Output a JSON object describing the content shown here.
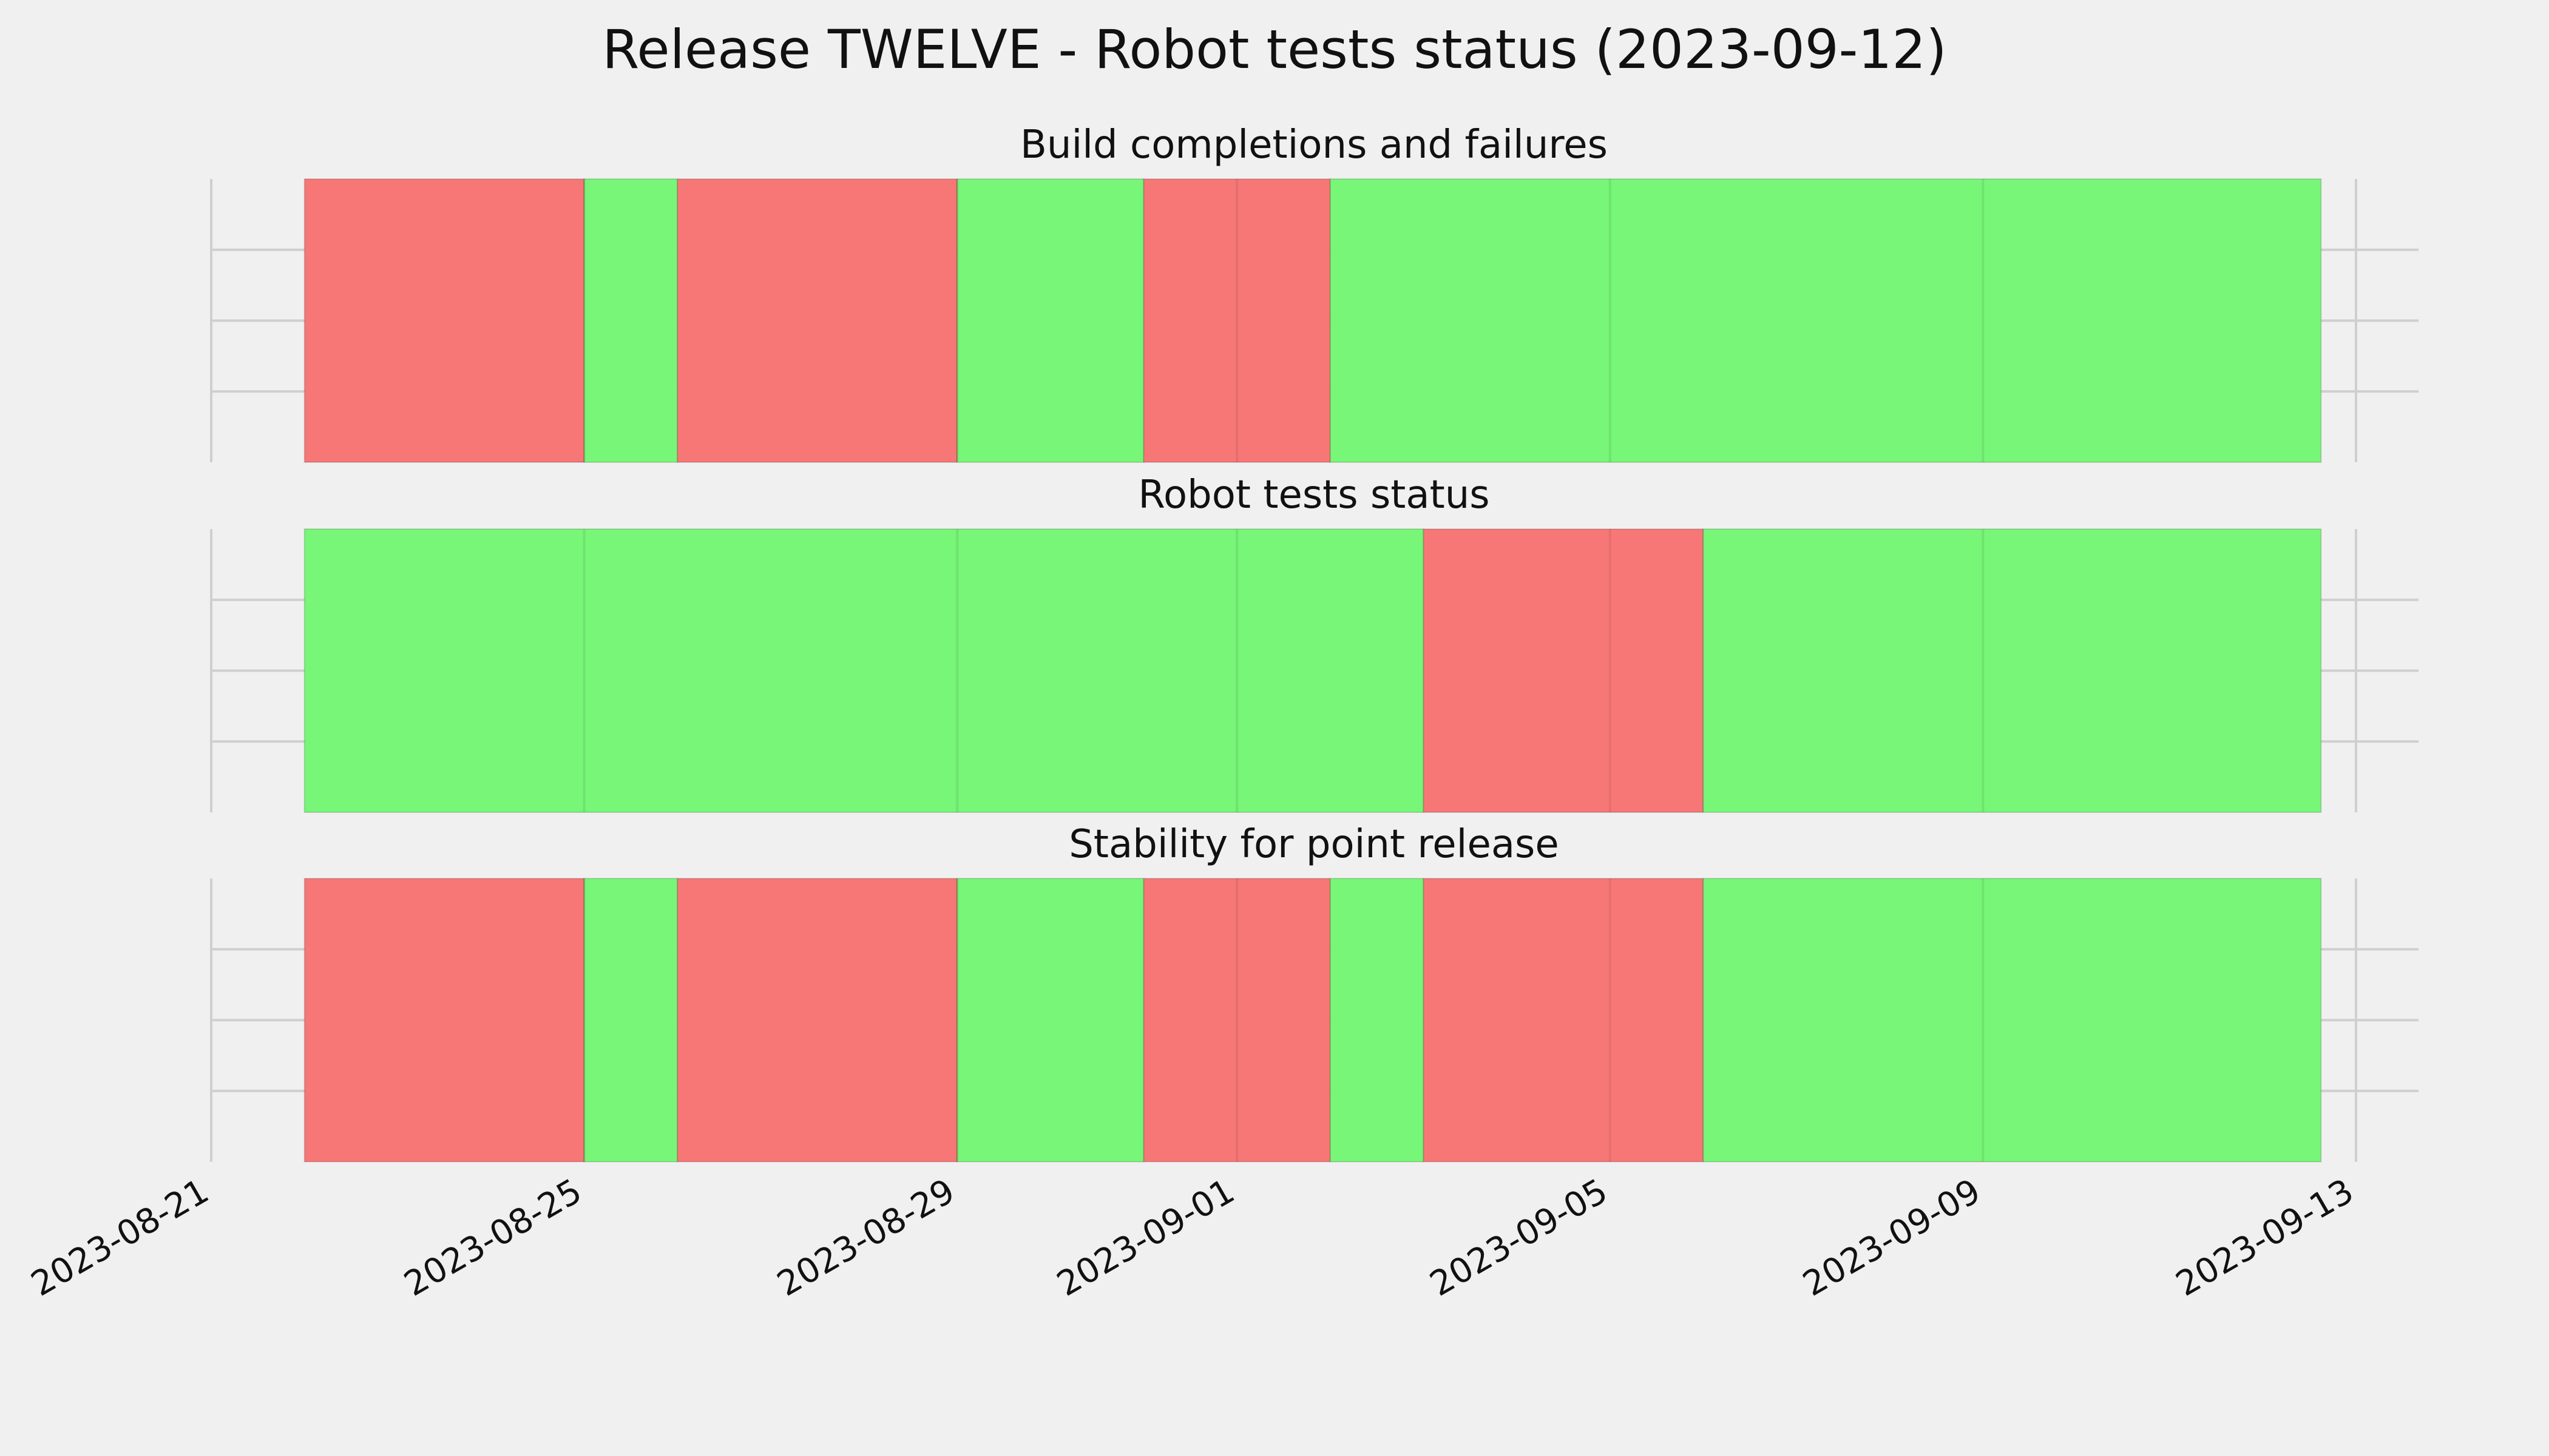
{
  "chart_data": {
    "type": "timeline",
    "title": "Release TWELVE - Robot tests status (2023-09-12)",
    "colors": {
      "pass": "#77f677",
      "fail": "#f77777",
      "background": "#f0f0f0",
      "grid": "#cfcfcf"
    },
    "x_ticks": [
      "2023-08-21",
      "2023-08-25",
      "2023-08-29",
      "2023-09-01",
      "2023-09-05",
      "2023-09-09",
      "2023-09-13"
    ],
    "grid": true,
    "panels": [
      {
        "title": "Build completions and failures",
        "segments": [
          {
            "start": "2023-08-22",
            "end": "2023-08-25",
            "status": "fail"
          },
          {
            "start": "2023-08-25",
            "end": "2023-08-26",
            "status": "pass"
          },
          {
            "start": "2023-08-26",
            "end": "2023-08-29",
            "status": "fail"
          },
          {
            "start": "2023-08-29",
            "end": "2023-08-31",
            "status": "pass"
          },
          {
            "start": "2023-08-31",
            "end": "2023-09-02",
            "status": "fail"
          },
          {
            "start": "2023-09-02",
            "end": "2023-09-12 15:00",
            "status": "pass"
          }
        ]
      },
      {
        "title": "Robot tests status",
        "segments": [
          {
            "start": "2023-08-22",
            "end": "2023-09-03",
            "status": "pass"
          },
          {
            "start": "2023-09-03",
            "end": "2023-09-06",
            "status": "fail"
          },
          {
            "start": "2023-09-06",
            "end": "2023-09-12 15:00",
            "status": "pass"
          }
        ]
      },
      {
        "title": "Stability for point release",
        "segments": [
          {
            "start": "2023-08-22",
            "end": "2023-08-25",
            "status": "fail"
          },
          {
            "start": "2023-08-25",
            "end": "2023-08-26",
            "status": "pass"
          },
          {
            "start": "2023-08-26",
            "end": "2023-08-29",
            "status": "fail"
          },
          {
            "start": "2023-08-29",
            "end": "2023-08-31",
            "status": "pass"
          },
          {
            "start": "2023-08-31",
            "end": "2023-09-02",
            "status": "fail"
          },
          {
            "start": "2023-09-02",
            "end": "2023-09-03",
            "status": "pass"
          },
          {
            "start": "2023-09-03",
            "end": "2023-09-06",
            "status": "fail"
          },
          {
            "start": "2023-09-06",
            "end": "2023-09-12 15:00",
            "status": "pass"
          }
        ]
      }
    ]
  }
}
